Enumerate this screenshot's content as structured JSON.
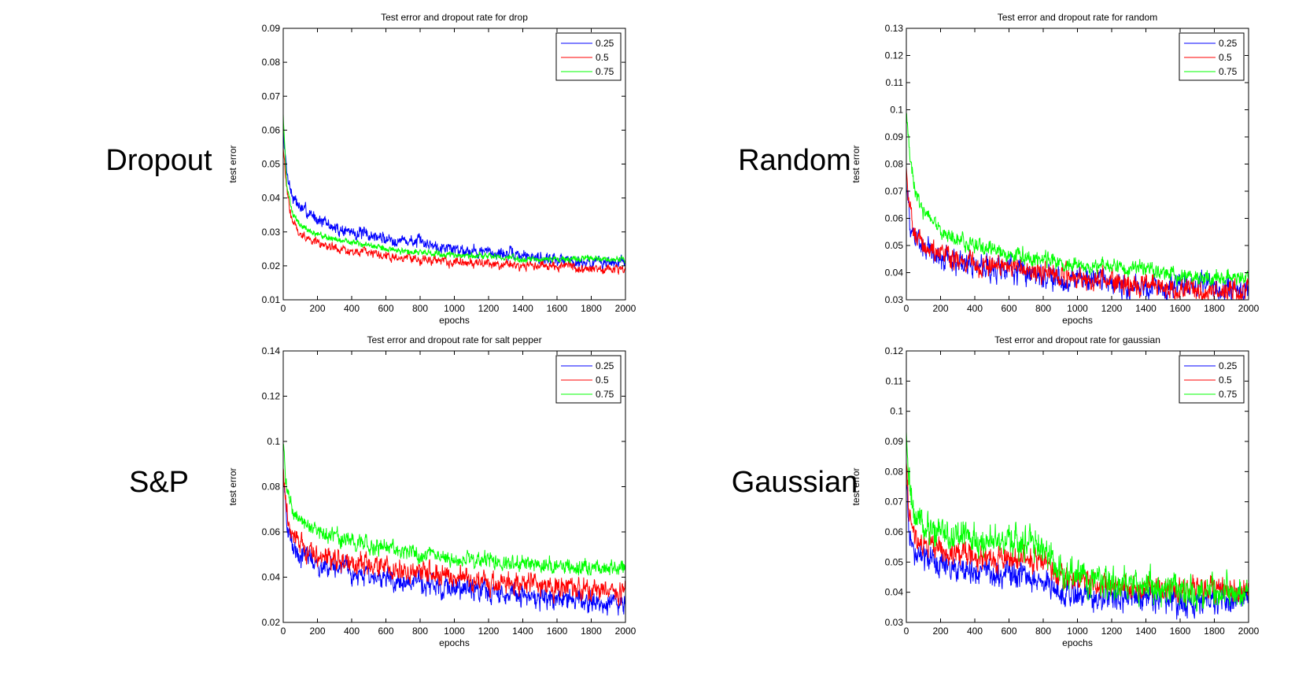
{
  "row_labels": {
    "dropout": "Dropout",
    "random": "Random",
    "sp": "S&P",
    "gaussian": "Gaussian"
  },
  "chart_data": [
    {
      "type": "line",
      "title": "Test error and dropout rate for drop",
      "xlabel": "epochs",
      "ylabel": "test error",
      "xlim": [
        0,
        2000
      ],
      "ylim": [
        0.01,
        0.09
      ],
      "xticks": [
        0,
        200,
        400,
        600,
        800,
        1000,
        1200,
        1400,
        1600,
        1800,
        2000
      ],
      "yticks": [
        0.01,
        0.02,
        0.03,
        0.04,
        0.05,
        0.06,
        0.07,
        0.08,
        0.09
      ],
      "ytick_labels": [
        "0.01",
        "0.02",
        "0.03",
        "0.04",
        "0.05",
        "0.06",
        "0.07",
        "0.08",
        "0.09"
      ],
      "legend_position": "top-right",
      "series": [
        {
          "name": "0.25",
          "color": "#0000ff",
          "x": [
            0,
            20,
            50,
            100,
            200,
            300,
            400,
            600,
            800,
            1000,
            1200,
            1400,
            1600,
            1800,
            2000
          ],
          "values": [
            0.06,
            0.048,
            0.041,
            0.037,
            0.034,
            0.031,
            0.03,
            0.028,
            0.027,
            0.025,
            0.024,
            0.023,
            0.022,
            0.021,
            0.021
          ],
          "noise": 0.0012
        },
        {
          "name": "0.5",
          "color": "#ff0000",
          "x": [
            0,
            20,
            50,
            100,
            200,
            300,
            400,
            600,
            800,
            1000,
            1200,
            1400,
            1600,
            1800,
            2000
          ],
          "values": [
            0.055,
            0.042,
            0.034,
            0.029,
            0.027,
            0.025,
            0.024,
            0.023,
            0.022,
            0.021,
            0.021,
            0.02,
            0.02,
            0.019,
            0.019
          ],
          "noise": 0.0009
        },
        {
          "name": "0.75",
          "color": "#00ff00",
          "x": [
            0,
            20,
            50,
            100,
            200,
            300,
            400,
            600,
            800,
            1000,
            1200,
            1400,
            1600,
            1800,
            2000
          ],
          "values": [
            0.065,
            0.044,
            0.036,
            0.032,
            0.029,
            0.028,
            0.027,
            0.025,
            0.024,
            0.023,
            0.023,
            0.022,
            0.022,
            0.022,
            0.022
          ],
          "noise": 0.0006
        }
      ]
    },
    {
      "type": "line",
      "title": "Test error and dropout rate for random",
      "xlabel": "epochs",
      "ylabel": "test error",
      "xlim": [
        0,
        2000
      ],
      "ylim": [
        0.03,
        0.13
      ],
      "xticks": [
        0,
        200,
        400,
        600,
        800,
        1000,
        1200,
        1400,
        1600,
        1800,
        2000
      ],
      "yticks": [
        0.03,
        0.04,
        0.05,
        0.06,
        0.07,
        0.08,
        0.09,
        0.1,
        0.11,
        0.12,
        0.13
      ],
      "ytick_labels": [
        "0.03",
        "0.04",
        "0.05",
        "0.06",
        "0.07",
        "0.08",
        "0.09",
        "0.1",
        "0.11",
        "0.12",
        "0.13"
      ],
      "legend_position": "top-right",
      "series": [
        {
          "name": "0.25",
          "color": "#0000ff",
          "x": [
            0,
            20,
            50,
            100,
            200,
            300,
            400,
            600,
            800,
            1000,
            1200,
            1400,
            1600,
            1800,
            2000
          ],
          "values": [
            0.075,
            0.058,
            0.053,
            0.049,
            0.046,
            0.044,
            0.043,
            0.041,
            0.039,
            0.037,
            0.036,
            0.035,
            0.035,
            0.034,
            0.033
          ],
          "noise": 0.003
        },
        {
          "name": "0.5",
          "color": "#ff0000",
          "x": [
            0,
            20,
            50,
            100,
            200,
            300,
            400,
            600,
            800,
            1000,
            1200,
            1400,
            1600,
            1800,
            2000
          ],
          "values": [
            0.08,
            0.062,
            0.055,
            0.05,
            0.047,
            0.045,
            0.043,
            0.042,
            0.04,
            0.038,
            0.037,
            0.036,
            0.034,
            0.033,
            0.033
          ],
          "noise": 0.0025
        },
        {
          "name": "0.75",
          "color": "#00ff00",
          "x": [
            0,
            20,
            50,
            100,
            200,
            300,
            400,
            600,
            800,
            1000,
            1200,
            1400,
            1600,
            1800,
            2000
          ],
          "values": [
            0.1,
            0.082,
            0.07,
            0.062,
            0.056,
            0.052,
            0.05,
            0.047,
            0.045,
            0.043,
            0.042,
            0.041,
            0.039,
            0.038,
            0.039
          ],
          "noise": 0.0018
        }
      ]
    },
    {
      "type": "line",
      "title": "Test error and dropout rate for salt pepper",
      "xlabel": "epochs",
      "ylabel": "test error",
      "xlim": [
        0,
        2000
      ],
      "ylim": [
        0.02,
        0.14
      ],
      "xticks": [
        0,
        200,
        400,
        600,
        800,
        1000,
        1200,
        1400,
        1600,
        1800,
        2000
      ],
      "yticks": [
        0.02,
        0.04,
        0.06,
        0.08,
        0.1,
        0.12,
        0.14
      ],
      "ytick_labels": [
        "0.02",
        "0.04",
        "0.06",
        "0.08",
        "0.1",
        "0.12",
        "0.14"
      ],
      "legend_position": "top-right",
      "series": [
        {
          "name": "0.25",
          "color": "#0000ff",
          "x": [
            0,
            20,
            50,
            100,
            200,
            300,
            400,
            600,
            800,
            1000,
            1200,
            1400,
            1600,
            1800,
            2000
          ],
          "values": [
            0.085,
            0.063,
            0.055,
            0.05,
            0.046,
            0.044,
            0.042,
            0.039,
            0.037,
            0.035,
            0.033,
            0.032,
            0.03,
            0.029,
            0.028
          ],
          "noise": 0.003
        },
        {
          "name": "0.5",
          "color": "#ff0000",
          "x": [
            0,
            20,
            50,
            100,
            200,
            300,
            400,
            600,
            800,
            1000,
            1200,
            1400,
            1600,
            1800,
            2000
          ],
          "values": [
            0.09,
            0.068,
            0.059,
            0.054,
            0.05,
            0.048,
            0.046,
            0.044,
            0.042,
            0.04,
            0.038,
            0.037,
            0.035,
            0.034,
            0.033
          ],
          "noise": 0.003
        },
        {
          "name": "0.75",
          "color": "#00ff00",
          "x": [
            0,
            20,
            50,
            100,
            200,
            300,
            400,
            600,
            800,
            1000,
            1200,
            1400,
            1600,
            1800,
            2000
          ],
          "values": [
            0.1,
            0.078,
            0.07,
            0.065,
            0.06,
            0.058,
            0.056,
            0.053,
            0.05,
            0.048,
            0.047,
            0.046,
            0.045,
            0.044,
            0.044
          ],
          "noise": 0.0022
        }
      ]
    },
    {
      "type": "line",
      "title": "Test error and dropout rate for gaussian",
      "xlabel": "epochs",
      "ylabel": "test error",
      "xlim": [
        0,
        2000
      ],
      "ylim": [
        0.03,
        0.12
      ],
      "xticks": [
        0,
        200,
        400,
        600,
        800,
        1000,
        1200,
        1400,
        1600,
        1800,
        2000
      ],
      "yticks": [
        0.03,
        0.04,
        0.05,
        0.06,
        0.07,
        0.08,
        0.09,
        0.1,
        0.11,
        0.12
      ],
      "ytick_labels": [
        "0.03",
        "0.04",
        "0.05",
        "0.06",
        "0.07",
        "0.08",
        "0.09",
        "0.1",
        "0.11",
        "0.12"
      ],
      "legend_position": "top-right",
      "series": [
        {
          "name": "0.25",
          "color": "#0000ff",
          "x": [
            0,
            20,
            50,
            100,
            200,
            300,
            400,
            600,
            700,
            800,
            900,
            1000,
            1200,
            1400,
            1600,
            1800,
            2000
          ],
          "values": [
            0.075,
            0.058,
            0.054,
            0.051,
            0.049,
            0.048,
            0.047,
            0.046,
            0.045,
            0.044,
            0.04,
            0.039,
            0.038,
            0.038,
            0.037,
            0.037,
            0.037
          ],
          "noise": 0.0028
        },
        {
          "name": "0.5",
          "color": "#ff0000",
          "x": [
            0,
            20,
            50,
            100,
            200,
            300,
            400,
            600,
            700,
            800,
            900,
            1000,
            1200,
            1400,
            1600,
            1800,
            2000
          ],
          "values": [
            0.085,
            0.064,
            0.058,
            0.056,
            0.054,
            0.053,
            0.052,
            0.051,
            0.051,
            0.05,
            0.045,
            0.044,
            0.042,
            0.041,
            0.041,
            0.041,
            0.04
          ],
          "noise": 0.0025
        },
        {
          "name": "0.75",
          "color": "#00ff00",
          "x": [
            0,
            20,
            50,
            100,
            200,
            300,
            400,
            600,
            700,
            800,
            900,
            1000,
            1200,
            1400,
            1600,
            1800,
            2000
          ],
          "values": [
            0.092,
            0.075,
            0.065,
            0.062,
            0.06,
            0.058,
            0.057,
            0.056,
            0.056,
            0.055,
            0.047,
            0.045,
            0.043,
            0.042,
            0.041,
            0.04,
            0.04
          ],
          "noise": 0.0035
        }
      ]
    }
  ]
}
